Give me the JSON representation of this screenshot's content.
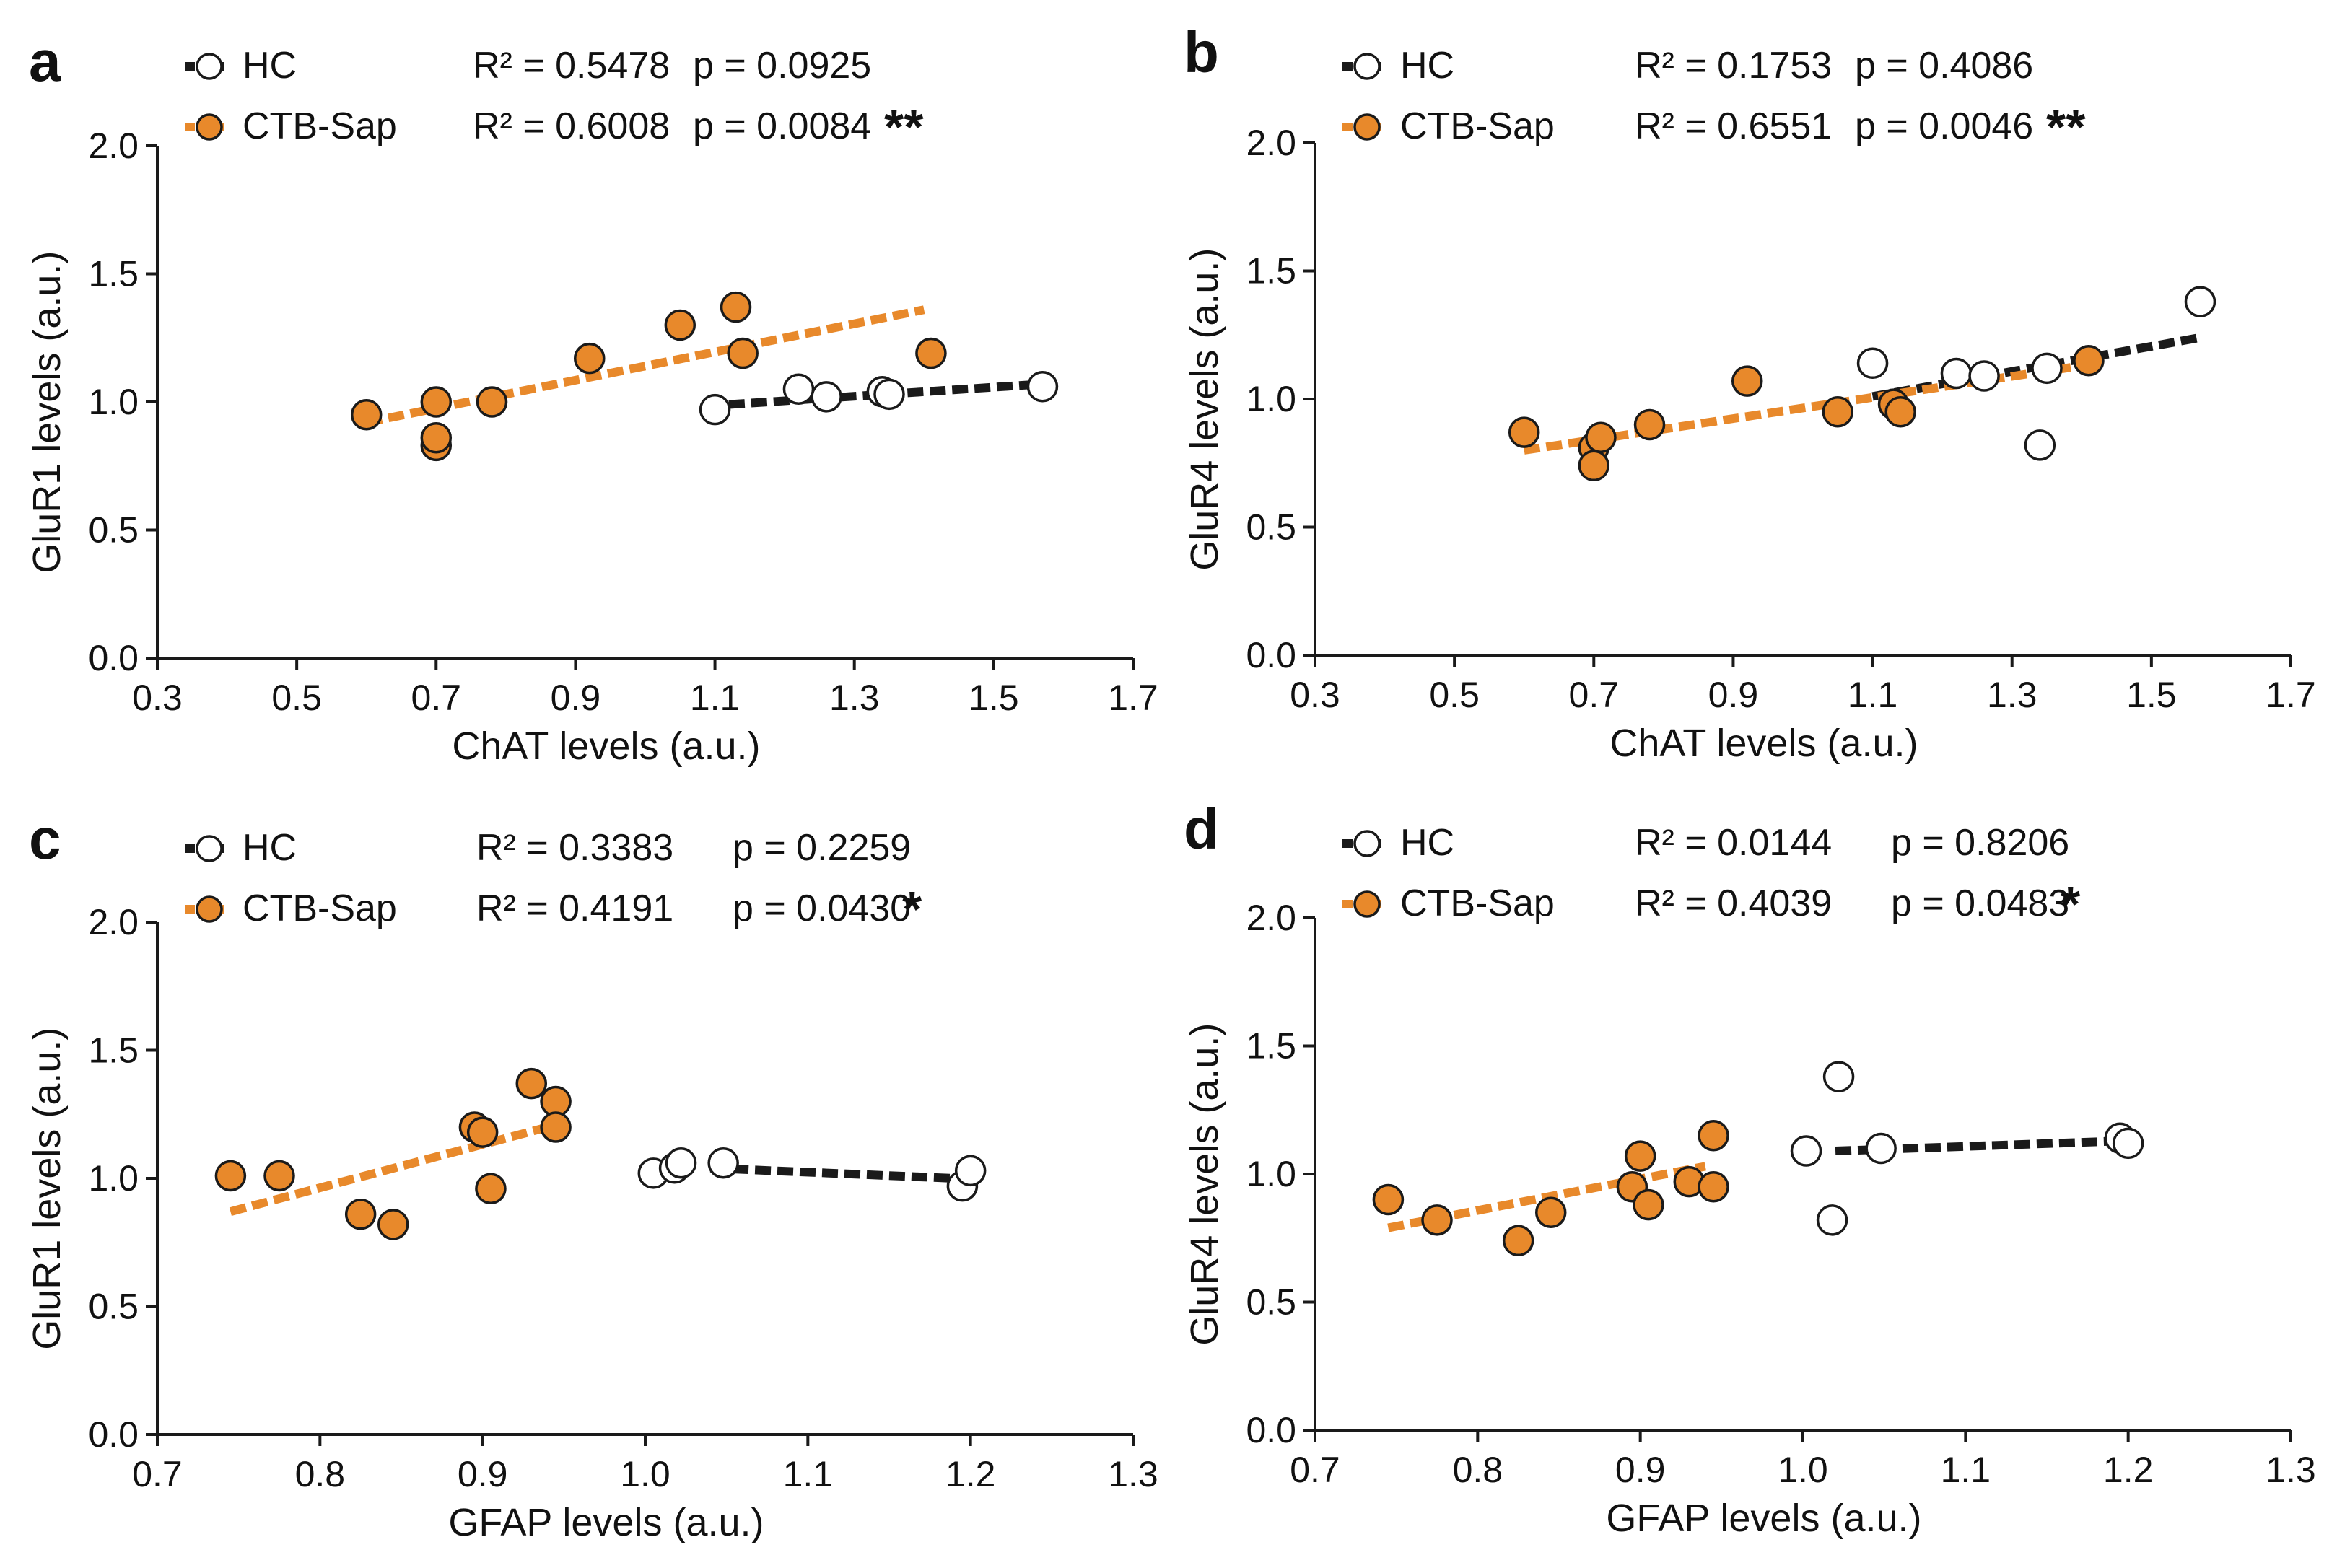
{
  "colors": {
    "hc_fill": "#ffffff",
    "hc_line": "#1a1a1a",
    "ctb_fill": "#e8892b",
    "ctb_line": "#e8892b",
    "marker_stroke": "#1a1a1a",
    "axis": "#1a1a1a"
  },
  "chart_data": [
    {
      "type": "scatter",
      "panel": "a",
      "xlabel": "ChAT levels (a.u.)",
      "ylabel": "GluR1 levels (a.u.)",
      "xlim": [
        0.3,
        1.7
      ],
      "ylim": [
        0.0,
        2.0
      ],
      "xticks": [
        "0.3",
        "0.5",
        "0.7",
        "0.9",
        "1.1",
        "1.3",
        "1.5",
        "1.7"
      ],
      "yticks": [
        "0.0",
        "0.5",
        "1.0",
        "1.5",
        "2.0"
      ],
      "legend": [
        {
          "name": "HC",
          "r2": "R² = 0.5478",
          "p": "p = 0.0925",
          "stars": ""
        },
        {
          "name": "CTB-Sap",
          "r2": "R² = 0.6008",
          "p": "p = 0.0084",
          "stars": "**"
        }
      ],
      "series": [
        {
          "name": "HC",
          "points": [
            [
              1.1,
              0.97
            ],
            [
              1.22,
              1.05
            ],
            [
              1.26,
              1.02
            ],
            [
              1.34,
              1.04
            ],
            [
              1.35,
              1.03
            ],
            [
              1.57,
              1.06
            ]
          ],
          "fit": [
            [
              1.12,
              0.99
            ],
            [
              1.57,
              1.07
            ]
          ]
        },
        {
          "name": "CTB-Sap",
          "points": [
            [
              0.6,
              0.95
            ],
            [
              0.7,
              1.0
            ],
            [
              0.7,
              0.83
            ],
            [
              0.7,
              0.86
            ],
            [
              0.78,
              1.0
            ],
            [
              0.92,
              1.17
            ],
            [
              1.05,
              1.3
            ],
            [
              1.13,
              1.37
            ],
            [
              1.14,
              1.19
            ],
            [
              1.41,
              1.19
            ]
          ],
          "fit": [
            [
              0.6,
              0.92
            ],
            [
              1.4,
              1.36
            ]
          ]
        }
      ]
    },
    {
      "type": "scatter",
      "panel": "b",
      "xlabel": "ChAT levels (a.u.)",
      "ylabel": "GluR4 levels (a.u.)",
      "xlim": [
        0.3,
        1.7
      ],
      "ylim": [
        0.0,
        2.0
      ],
      "xticks": [
        "0.3",
        "0.5",
        "0.7",
        "0.9",
        "1.1",
        "1.3",
        "1.5",
        "1.7"
      ],
      "yticks": [
        "0.0",
        "0.5",
        "1.0",
        "1.5",
        "2.0"
      ],
      "legend": [
        {
          "name": "HC",
          "r2": "R² = 0.1753",
          "p": "p = 0.4086",
          "stars": ""
        },
        {
          "name": "CTB-Sap",
          "r2": "R² = 0.6551",
          "p": "p = 0.0046",
          "stars": "**"
        }
      ],
      "series": [
        {
          "name": "HC",
          "points": [
            [
              1.1,
              1.14
            ],
            [
              1.22,
              1.1
            ],
            [
              1.26,
              1.09
            ],
            [
              1.34,
              0.82
            ],
            [
              1.35,
              1.12
            ],
            [
              1.57,
              1.38
            ]
          ],
          "fit": [
            [
              1.1,
              1.01
            ],
            [
              1.57,
              1.24
            ]
          ]
        },
        {
          "name": "CTB-Sap",
          "points": [
            [
              0.6,
              0.87
            ],
            [
              0.7,
              0.81
            ],
            [
              0.7,
              0.74
            ],
            [
              0.71,
              0.85
            ],
            [
              0.78,
              0.9
            ],
            [
              0.92,
              1.07
            ],
            [
              1.05,
              0.95
            ],
            [
              1.13,
              0.98
            ],
            [
              1.14,
              0.95
            ],
            [
              1.41,
              1.15
            ]
          ],
          "fit": [
            [
              0.6,
              0.8
            ],
            [
              1.4,
              1.13
            ]
          ]
        }
      ]
    },
    {
      "type": "scatter",
      "panel": "c",
      "xlabel": "GFAP levels (a.u.)",
      "ylabel": "GluR1 levels (a.u.)",
      "xlim": [
        0.7,
        1.3
      ],
      "ylim": [
        0.0,
        2.0
      ],
      "xticks": [
        "0.7",
        "0.8",
        "0.9",
        "1.0",
        "1.1",
        "1.2",
        "1.3"
      ],
      "yticks": [
        "0.0",
        "0.5",
        "1.0",
        "1.5",
        "2.0"
      ],
      "legend": [
        {
          "name": "HC",
          "r2": "R² = 0.3383",
          "p": "p = 0.2259",
          "stars": ""
        },
        {
          "name": "CTB-Sap",
          "r2": "R² = 0.4191",
          "p": "p = 0.0430",
          "stars": "*"
        }
      ],
      "series": [
        {
          "name": "HC",
          "points": [
            [
              1.005,
              1.02
            ],
            [
              1.018,
              1.04
            ],
            [
              1.022,
              1.06
            ],
            [
              1.048,
              1.06
            ],
            [
              1.195,
              0.97
            ],
            [
              1.2,
              1.03
            ]
          ],
          "fit": [
            [
              1.04,
              1.04
            ],
            [
              1.19,
              1.0
            ]
          ]
        },
        {
          "name": "CTB-Sap",
          "points": [
            [
              0.745,
              1.01
            ],
            [
              0.775,
              1.01
            ],
            [
              0.825,
              0.86
            ],
            [
              0.845,
              0.82
            ],
            [
              0.895,
              1.2
            ],
            [
              0.9,
              1.18
            ],
            [
              0.905,
              0.96
            ],
            [
              0.93,
              1.37
            ],
            [
              0.945,
              1.3
            ],
            [
              0.945,
              1.2
            ]
          ],
          "fit": [
            [
              0.745,
              0.87
            ],
            [
              0.94,
              1.2
            ]
          ]
        }
      ]
    },
    {
      "type": "scatter",
      "panel": "d",
      "xlabel": "GFAP levels (a.u.)",
      "ylabel": "GluR4 levels (a.u.)",
      "xlim": [
        0.7,
        1.3
      ],
      "ylim": [
        0.0,
        2.0
      ],
      "xticks": [
        "0.7",
        "0.8",
        "0.9",
        "1.0",
        "1.1",
        "1.2",
        "1.3"
      ],
      "yticks": [
        "0.0",
        "0.5",
        "1.0",
        "1.5",
        "2.0"
      ],
      "legend": [
        {
          "name": "HC",
          "r2": "R² = 0.0144",
          "p": "p = 0.8206",
          "stars": ""
        },
        {
          "name": "CTB-Sap",
          "r2": "R² = 0.4039",
          "p": "p = 0.0483",
          "stars": "*"
        }
      ],
      "series": [
        {
          "name": "HC",
          "points": [
            [
              1.002,
              1.09
            ],
            [
              1.018,
              0.82
            ],
            [
              1.022,
              1.38
            ],
            [
              1.048,
              1.1
            ],
            [
              1.195,
              1.14
            ],
            [
              1.2,
              1.12
            ]
          ],
          "fit": [
            [
              1.02,
              1.09
            ],
            [
              1.2,
              1.13
            ]
          ]
        },
        {
          "name": "CTB-Sap",
          "points": [
            [
              0.745,
              0.9
            ],
            [
              0.775,
              0.82
            ],
            [
              0.825,
              0.74
            ],
            [
              0.845,
              0.85
            ],
            [
              0.895,
              0.95
            ],
            [
              0.9,
              1.07
            ],
            [
              0.905,
              0.88
            ],
            [
              0.93,
              0.97
            ],
            [
              0.945,
              1.15
            ],
            [
              0.945,
              0.95
            ]
          ],
          "fit": [
            [
              0.745,
              0.79
            ],
            [
              0.94,
              1.03
            ]
          ]
        }
      ]
    }
  ]
}
